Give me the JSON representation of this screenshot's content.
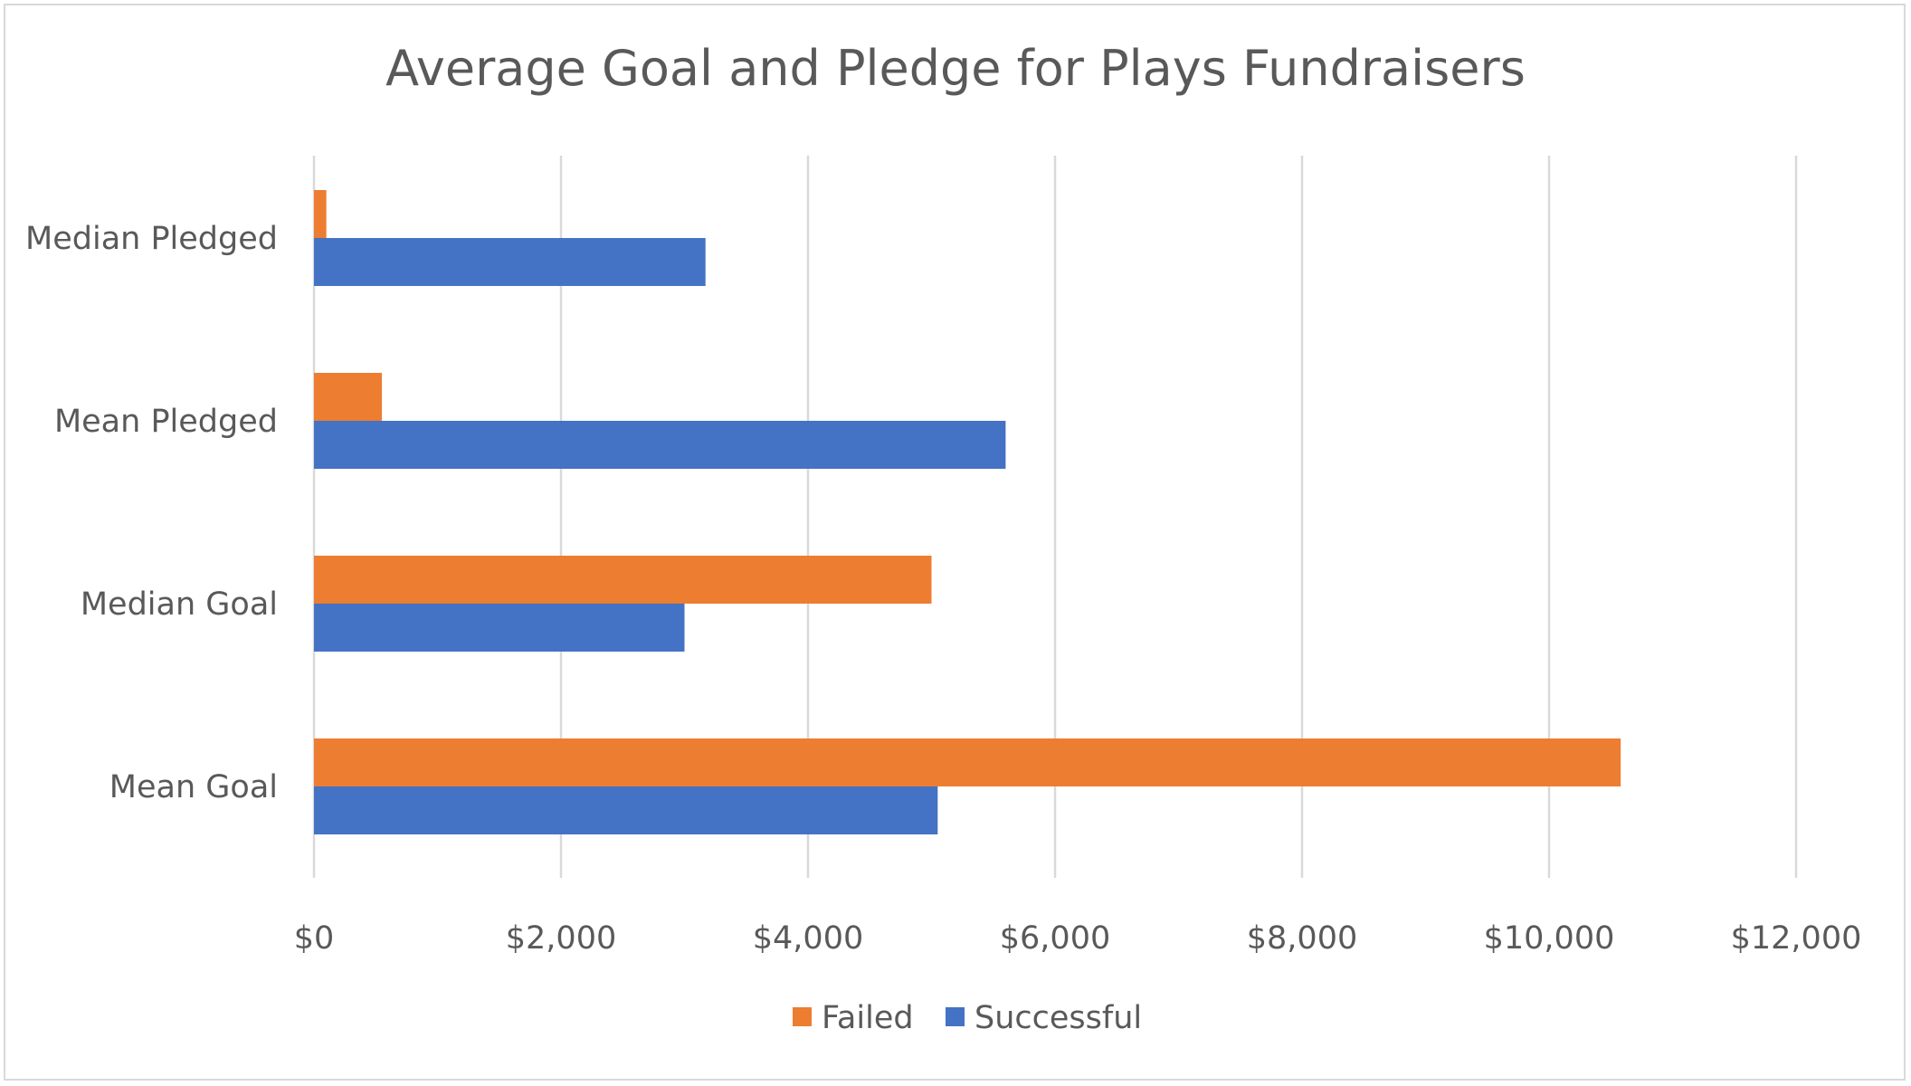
{
  "chart_data": {
    "type": "bar",
    "orientation": "horizontal",
    "title": "Average Goal and Pledge for Plays Fundraisers",
    "categories": [
      "Mean Goal",
      "Median Goal",
      "Mean Pledged",
      "Median Pledged"
    ],
    "series": [
      {
        "name": "Failed",
        "color": "#ED7D31",
        "values": [
          10580,
          5000,
          550,
          100
        ]
      },
      {
        "name": "Successful",
        "color": "#4472C4",
        "values": [
          5050,
          3000,
          5600,
          3170
        ]
      }
    ],
    "xlim": [
      0,
      12000
    ],
    "x_ticks": [
      {
        "value": 0,
        "label": "$0"
      },
      {
        "value": 2000,
        "label": "$2,000"
      },
      {
        "value": 4000,
        "label": "$4,000"
      },
      {
        "value": 6000,
        "label": "$6,000"
      },
      {
        "value": 8000,
        "label": "$8,000"
      },
      {
        "value": 10000,
        "label": "$10,000"
      },
      {
        "value": 12000,
        "label": "$12,000"
      }
    ],
    "xlabel": "",
    "ylabel": "",
    "grid": true,
    "legend_position": "bottom"
  }
}
